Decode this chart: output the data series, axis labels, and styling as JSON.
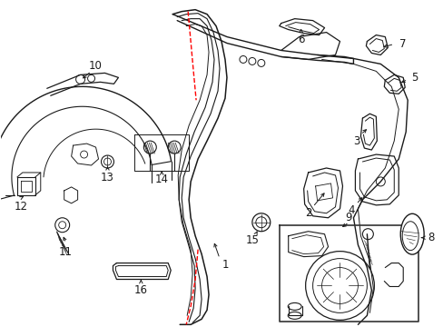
{
  "bg_color": "#ffffff",
  "line_color": "#1a1a1a",
  "red_color": "#ff0000",
  "figsize": [
    4.89,
    3.6
  ],
  "dpi": 100
}
